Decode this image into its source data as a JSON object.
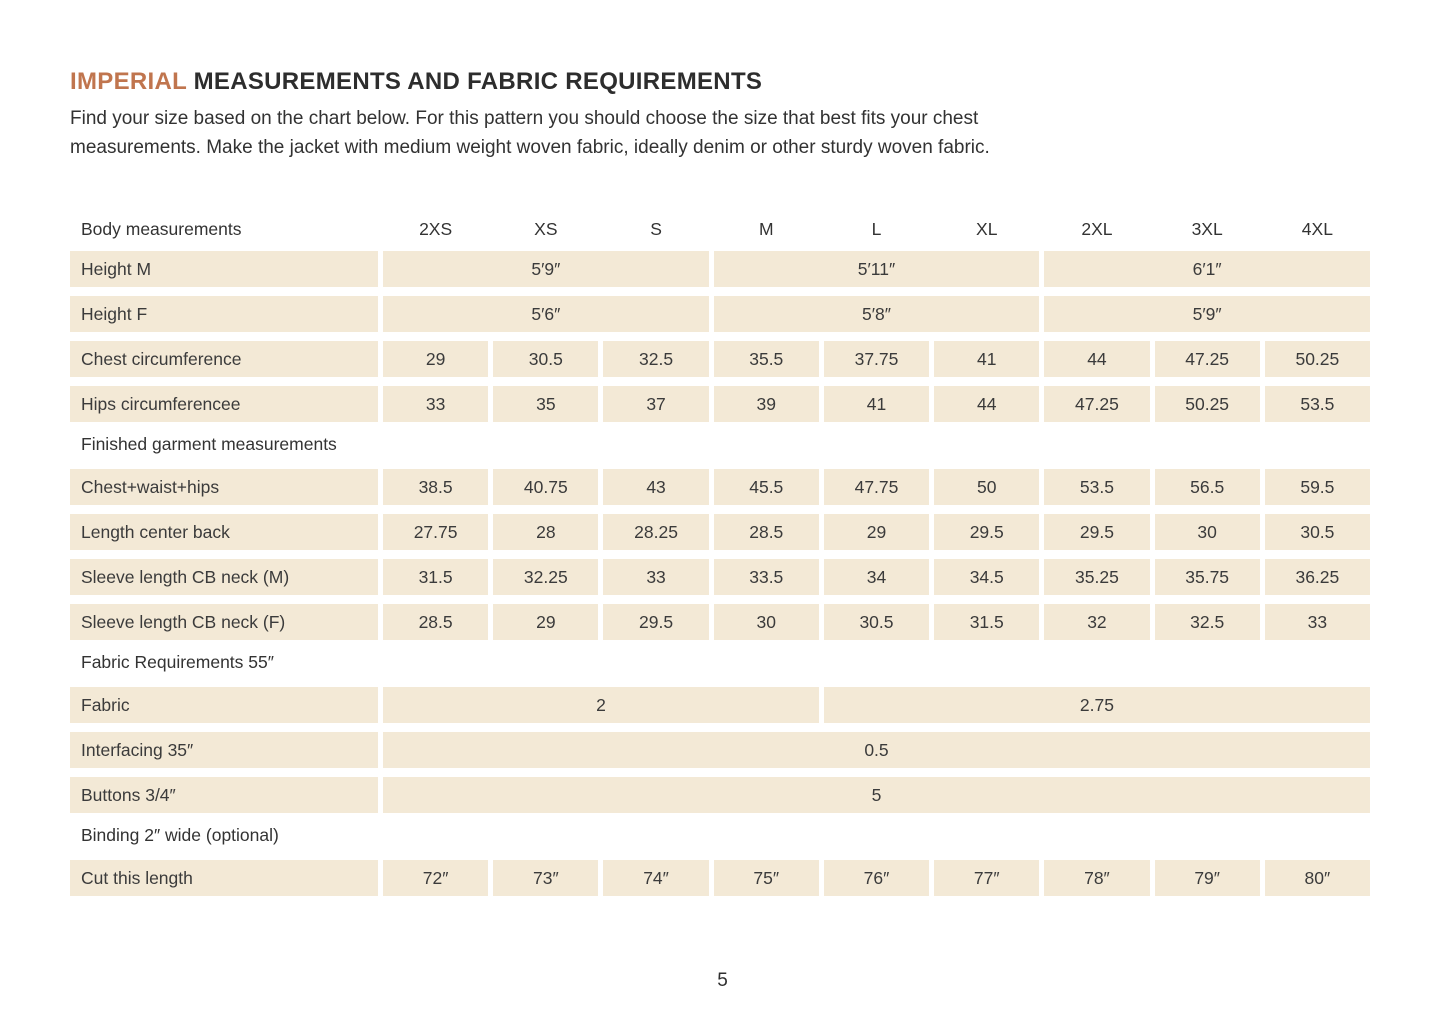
{
  "title": {
    "highlight": "IMPERIAL",
    "rest": " MEASUREMENTS AND FABRIC REQUIREMENTS"
  },
  "intro": {
    "line1": "Find your size based on the chart below. For this pattern you should choose the size that best fits your chest",
    "line2": "measurements. Make the jacket with medium weight woven fabric, ideally denim or other sturdy woven fabric."
  },
  "colors": {
    "accent": "#c0754e",
    "cell_background": "#f3e9d6",
    "text": "#3b3b3b"
  },
  "table": {
    "header": {
      "label": "Body measurements",
      "sizes": [
        "2XS",
        "XS",
        "S",
        "M",
        "L",
        "XL",
        "2XL",
        "3XL",
        "4XL"
      ]
    },
    "body": [
      {
        "type": "row",
        "label": "Height M",
        "cells": [
          {
            "span": 3,
            "value": "5′9″"
          },
          {
            "span": 3,
            "value": "5′11″"
          },
          {
            "span": 3,
            "value": "6′1″"
          }
        ]
      },
      {
        "type": "row",
        "label": "Height F",
        "cells": [
          {
            "span": 3,
            "value": "5′6″"
          },
          {
            "span": 3,
            "value": "5′8″"
          },
          {
            "span": 3,
            "value": "5′9″"
          }
        ]
      },
      {
        "type": "row",
        "label": "Chest circumference",
        "cells": [
          {
            "span": 1,
            "value": "29"
          },
          {
            "span": 1,
            "value": "30.5"
          },
          {
            "span": 1,
            "value": "32.5"
          },
          {
            "span": 1,
            "value": "35.5"
          },
          {
            "span": 1,
            "value": "37.75"
          },
          {
            "span": 1,
            "value": "41"
          },
          {
            "span": 1,
            "value": "44"
          },
          {
            "span": 1,
            "value": "47.25"
          },
          {
            "span": 1,
            "value": "50.25"
          }
        ]
      },
      {
        "type": "row",
        "label": "Hips circumferencee",
        "cells": [
          {
            "span": 1,
            "value": "33"
          },
          {
            "span": 1,
            "value": "35"
          },
          {
            "span": 1,
            "value": "37"
          },
          {
            "span": 1,
            "value": "39"
          },
          {
            "span": 1,
            "value": "41"
          },
          {
            "span": 1,
            "value": "44"
          },
          {
            "span": 1,
            "value": "47.25"
          },
          {
            "span": 1,
            "value": "50.25"
          },
          {
            "span": 1,
            "value": "53.5"
          }
        ]
      },
      {
        "type": "section",
        "label": "Finished garment measurements"
      },
      {
        "type": "row",
        "label": "Chest+waist+hips",
        "cells": [
          {
            "span": 1,
            "value": "38.5"
          },
          {
            "span": 1,
            "value": "40.75"
          },
          {
            "span": 1,
            "value": "43"
          },
          {
            "span": 1,
            "value": "45.5"
          },
          {
            "span": 1,
            "value": "47.75"
          },
          {
            "span": 1,
            "value": "50"
          },
          {
            "span": 1,
            "value": "53.5"
          },
          {
            "span": 1,
            "value": "56.5"
          },
          {
            "span": 1,
            "value": "59.5"
          }
        ]
      },
      {
        "type": "row",
        "label": "Length center back",
        "cells": [
          {
            "span": 1,
            "value": "27.75"
          },
          {
            "span": 1,
            "value": "28"
          },
          {
            "span": 1,
            "value": "28.25"
          },
          {
            "span": 1,
            "value": "28.5"
          },
          {
            "span": 1,
            "value": "29"
          },
          {
            "span": 1,
            "value": "29.5"
          },
          {
            "span": 1,
            "value": "29.5"
          },
          {
            "span": 1,
            "value": "30"
          },
          {
            "span": 1,
            "value": "30.5"
          }
        ]
      },
      {
        "type": "row",
        "label": "Sleeve length CB neck (M)",
        "cells": [
          {
            "span": 1,
            "value": "31.5"
          },
          {
            "span": 1,
            "value": "32.25"
          },
          {
            "span": 1,
            "value": "33"
          },
          {
            "span": 1,
            "value": "33.5"
          },
          {
            "span": 1,
            "value": "34"
          },
          {
            "span": 1,
            "value": "34.5"
          },
          {
            "span": 1,
            "value": "35.25"
          },
          {
            "span": 1,
            "value": "35.75"
          },
          {
            "span": 1,
            "value": "36.25"
          }
        ]
      },
      {
        "type": "row",
        "label": "Sleeve length CB neck (F)",
        "cells": [
          {
            "span": 1,
            "value": "28.5"
          },
          {
            "span": 1,
            "value": "29"
          },
          {
            "span": 1,
            "value": "29.5"
          },
          {
            "span": 1,
            "value": "30"
          },
          {
            "span": 1,
            "value": "30.5"
          },
          {
            "span": 1,
            "value": "31.5"
          },
          {
            "span": 1,
            "value": "32"
          },
          {
            "span": 1,
            "value": "32.5"
          },
          {
            "span": 1,
            "value": "33"
          }
        ]
      },
      {
        "type": "section",
        "label": "Fabric Requirements 55″"
      },
      {
        "type": "row",
        "label": "Fabric",
        "cells": [
          {
            "span": 4,
            "value": "2"
          },
          {
            "span": 5,
            "value": "2.75"
          }
        ]
      },
      {
        "type": "row",
        "label": "Interfacing 35″",
        "cells": [
          {
            "span": 9,
            "value": "0.5"
          }
        ]
      },
      {
        "type": "row",
        "label": "Buttons 3/4″",
        "cells": [
          {
            "span": 9,
            "value": "5"
          }
        ]
      },
      {
        "type": "section",
        "label": "Binding 2″ wide (optional)"
      },
      {
        "type": "row",
        "label": "Cut this length",
        "cells": [
          {
            "span": 1,
            "value": "72″"
          },
          {
            "span": 1,
            "value": "73″"
          },
          {
            "span": 1,
            "value": "74″"
          },
          {
            "span": 1,
            "value": "75″"
          },
          {
            "span": 1,
            "value": "76″"
          },
          {
            "span": 1,
            "value": "77″"
          },
          {
            "span": 1,
            "value": "78″"
          },
          {
            "span": 1,
            "value": "79″"
          },
          {
            "span": 1,
            "value": "80″"
          }
        ]
      }
    ]
  },
  "footer": {
    "page_number": "5"
  }
}
